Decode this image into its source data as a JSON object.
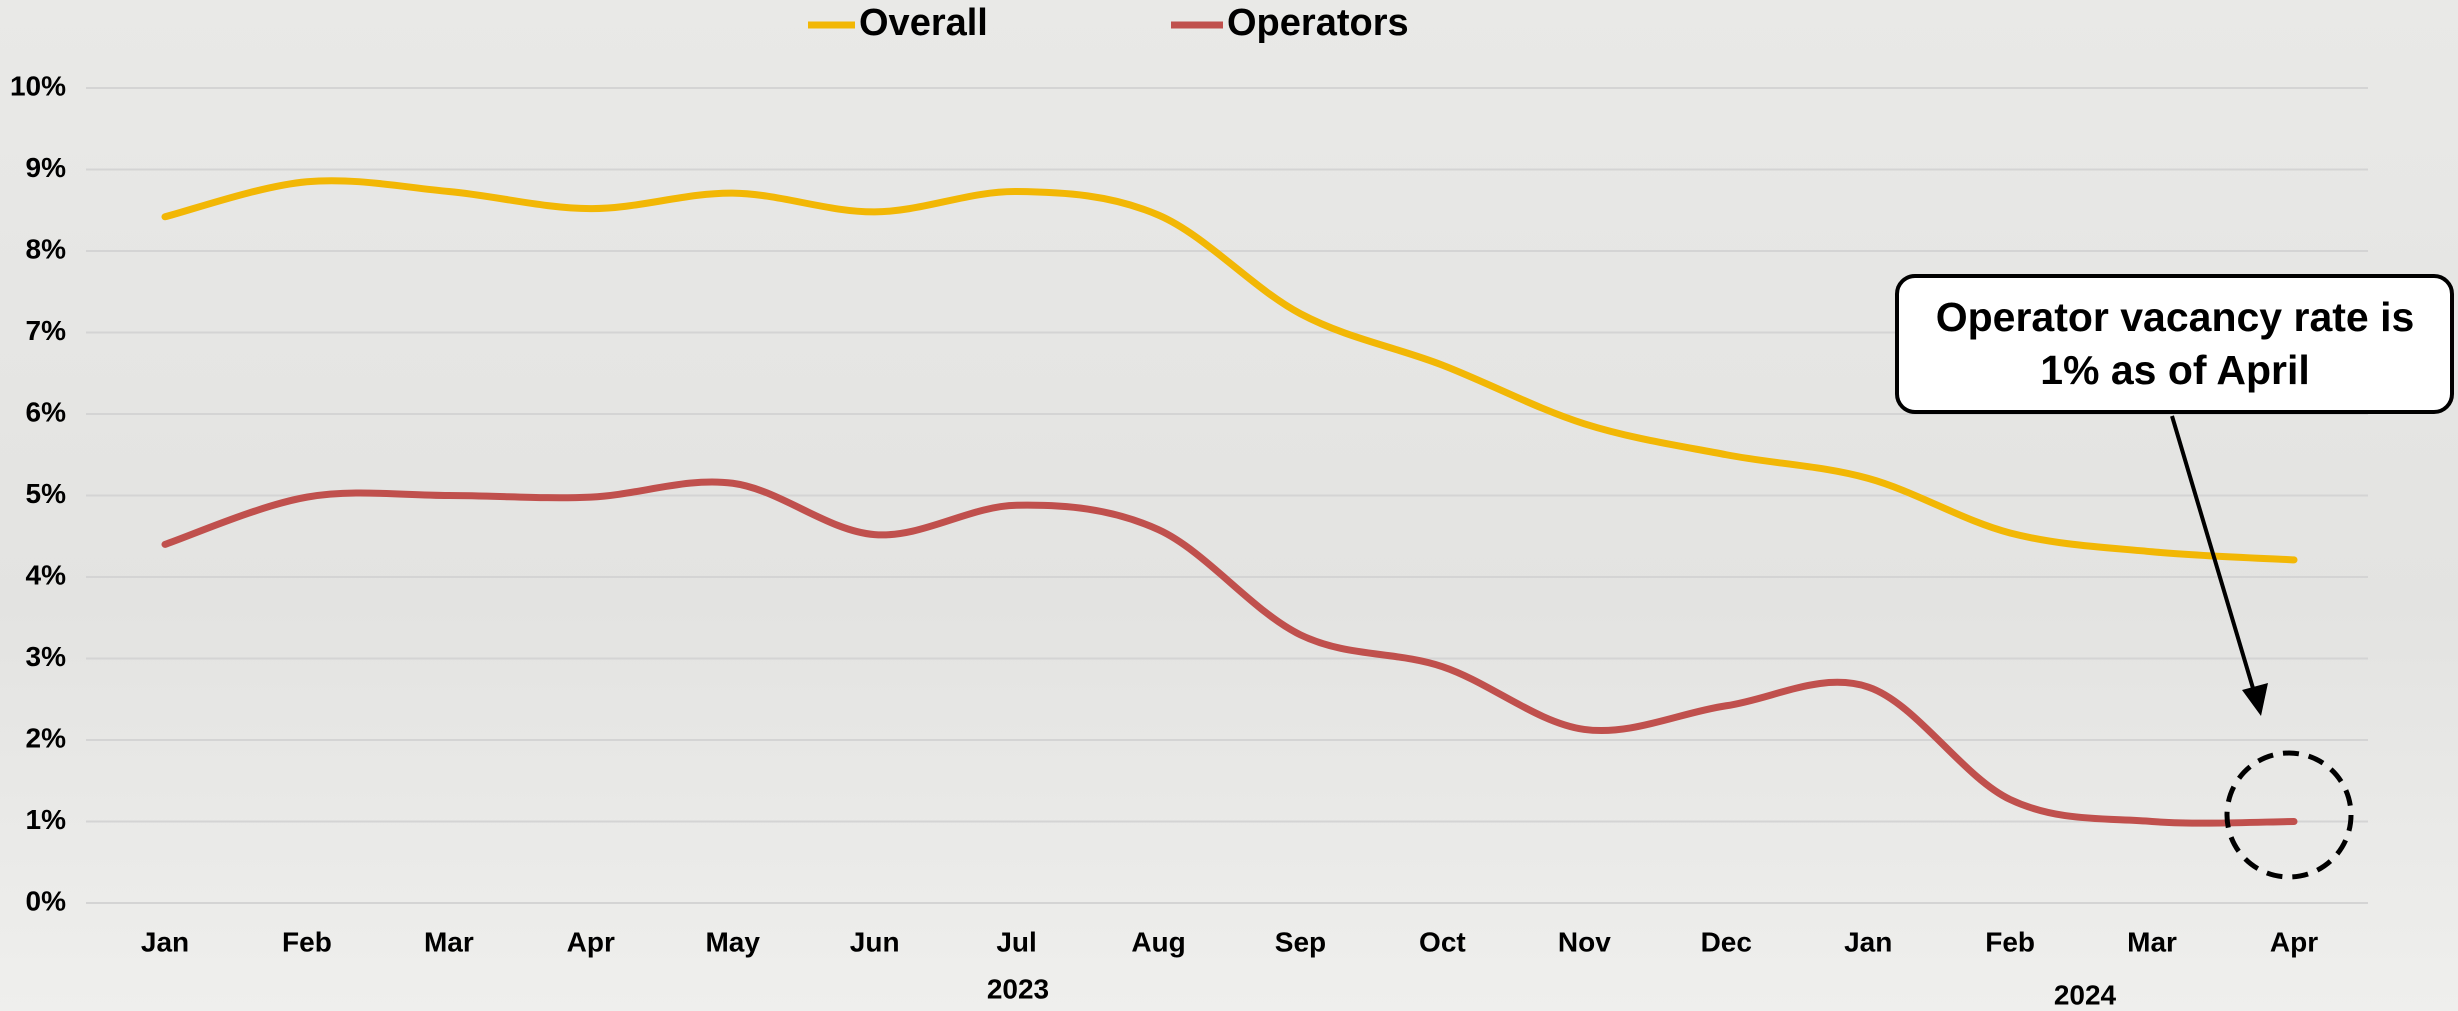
{
  "chart_data": {
    "type": "line",
    "categories": [
      "Jan",
      "Feb",
      "Mar",
      "Apr",
      "May",
      "Jun",
      "Jul",
      "Aug",
      "Sep",
      "Oct",
      "Nov",
      "Dec",
      "Jan",
      "Feb",
      "Mar",
      "Apr"
    ],
    "groups": [
      "2023",
      "2024"
    ],
    "series": [
      {
        "name": "Overall",
        "color": "#f2b705",
        "values": [
          8.42,
          8.85,
          8.73,
          8.52,
          8.71,
          8.48,
          8.73,
          8.44,
          7.23,
          6.6,
          5.88,
          5.5,
          5.21,
          4.54,
          4.31,
          4.21
        ]
      },
      {
        "name": "Operators",
        "color": "#c0504d",
        "values": [
          4.4,
          4.98,
          5.0,
          4.98,
          5.15,
          4.52,
          4.88,
          4.58,
          3.29,
          2.9,
          2.13,
          2.42,
          2.65,
          1.27,
          1.0,
          1.0
        ]
      }
    ],
    "ylim": [
      0,
      10
    ],
    "yticks": [
      {
        "value": 0,
        "label": "0%"
      },
      {
        "value": 1,
        "label": "1%"
      },
      {
        "value": 2,
        "label": "2%"
      },
      {
        "value": 3,
        "label": "3%"
      },
      {
        "value": 4,
        "label": "4%"
      },
      {
        "value": 5,
        "label": "5%"
      },
      {
        "value": 6,
        "label": "6%"
      },
      {
        "value": 7,
        "label": "7%"
      },
      {
        "value": 8,
        "label": "8%"
      },
      {
        "value": 9,
        "label": "9%"
      },
      {
        "value": 10,
        "label": "10%"
      }
    ],
    "grid": true,
    "legend": "top",
    "annotation": [
      "Operator vacancy rate is",
      "1% as of April"
    ]
  }
}
